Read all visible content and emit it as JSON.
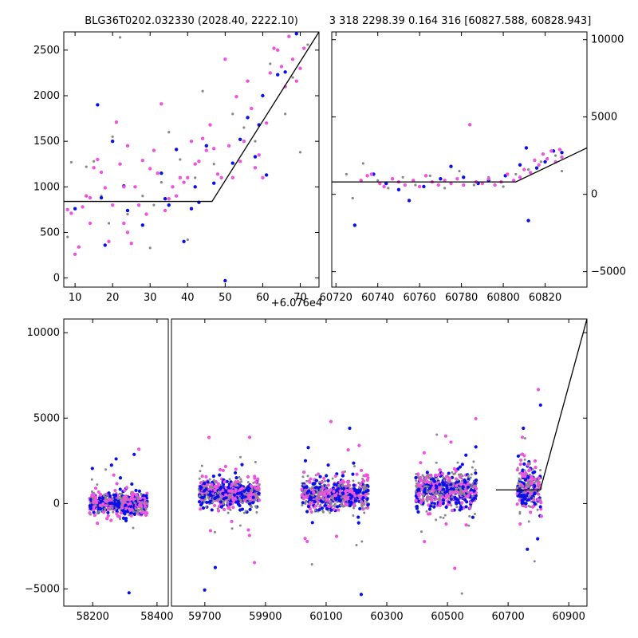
{
  "chart_data": [
    {
      "id": "top-left",
      "type": "scatter",
      "title": "BLG36T0202.032330 (2028.40, 2222.10)",
      "offset_label": "+6.076e4",
      "xlim": [
        7,
        75
      ],
      "ylim": [
        -100,
        2700
      ],
      "xticks": [
        10,
        20,
        30,
        40,
        50,
        60,
        70
      ],
      "yticks": [
        0,
        500,
        1000,
        1500,
        2000,
        2500
      ],
      "model_line": {
        "x": [
          7,
          46.5,
          75
        ],
        "y": [
          840,
          840,
          2700
        ]
      },
      "series": [
        {
          "color": "#888888",
          "points": [
            [
              8,
              450
            ],
            [
              9,
              1270
            ],
            [
              13,
              1220
            ],
            [
              15,
              1280
            ],
            [
              17,
              900
            ],
            [
              19,
              600
            ],
            [
              20,
              1550
            ],
            [
              22,
              2640
            ],
            [
              24,
              700
            ],
            [
              28,
              900
            ],
            [
              30,
              330
            ],
            [
              31,
              800
            ],
            [
              33,
              1050
            ],
            [
              35,
              1600
            ],
            [
              38,
              1300
            ],
            [
              40,
              420
            ],
            [
              42,
              1100
            ],
            [
              44,
              2050
            ],
            [
              47,
              1250
            ],
            [
              52,
              1800
            ],
            [
              55,
              1650
            ],
            [
              58,
              1500
            ],
            [
              62,
              2350
            ],
            [
              66,
              1800
            ],
            [
              68,
              2200
            ],
            [
              70,
              1380
            ],
            [
              72,
              2560
            ]
          ]
        },
        {
          "color": "#0a10e8",
          "points": [
            [
              10,
              760
            ],
            [
              16,
              1900
            ],
            [
              17,
              880
            ],
            [
              18,
              360
            ],
            [
              20,
              1500
            ],
            [
              23,
              1010
            ],
            [
              24,
              740
            ],
            [
              28,
              580
            ],
            [
              33,
              1150
            ],
            [
              34,
              870
            ],
            [
              35,
              800
            ],
            [
              37,
              1410
            ],
            [
              39,
              400
            ],
            [
              41,
              760
            ],
            [
              42,
              1000
            ],
            [
              43,
              830
            ],
            [
              45,
              1450
            ],
            [
              47,
              1040
            ],
            [
              50,
              -30
            ],
            [
              52,
              1260
            ],
            [
              54,
              1520
            ],
            [
              56,
              1760
            ],
            [
              58,
              1330
            ],
            [
              59,
              1680
            ],
            [
              60,
              2000
            ],
            [
              61,
              1130
            ],
            [
              62,
              2720
            ],
            [
              64,
              2230
            ],
            [
              66,
              2260
            ],
            [
              69,
              2680
            ]
          ]
        },
        {
          "color": "#ee55dd",
          "points": [
            [
              8,
              750
            ],
            [
              9,
              710
            ],
            [
              10,
              260
            ],
            [
              11,
              340
            ],
            [
              12,
              780
            ],
            [
              13,
              900
            ],
            [
              14,
              600
            ],
            [
              14,
              880
            ],
            [
              15,
              1210
            ],
            [
              16,
              1300
            ],
            [
              17,
              1160
            ],
            [
              18,
              990
            ],
            [
              19,
              400
            ],
            [
              20,
              800
            ],
            [
              21,
              1710
            ],
            [
              22,
              1250
            ],
            [
              23,
              1000
            ],
            [
              23,
              600
            ],
            [
              24,
              1450
            ],
            [
              24,
              500
            ],
            [
              25,
              380
            ],
            [
              26,
              1000
            ],
            [
              27,
              800
            ],
            [
              28,
              1290
            ],
            [
              29,
              700
            ],
            [
              30,
              1200
            ],
            [
              31,
              1400
            ],
            [
              32,
              1150
            ],
            [
              33,
              1910
            ],
            [
              34,
              740
            ],
            [
              35,
              870
            ],
            [
              36,
              1000
            ],
            [
              37,
              900
            ],
            [
              38,
              1100
            ],
            [
              39,
              1050
            ],
            [
              40,
              1100
            ],
            [
              41,
              1500
            ],
            [
              42,
              1250
            ],
            [
              43,
              1280
            ],
            [
              44,
              1530
            ],
            [
              45,
              1400
            ],
            [
              46,
              1680
            ],
            [
              47,
              1420
            ],
            [
              48,
              1140
            ],
            [
              49,
              1100
            ],
            [
              50,
              2400
            ],
            [
              51,
              1450
            ],
            [
              52,
              1100
            ],
            [
              53,
              1990
            ],
            [
              54,
              1280
            ],
            [
              55,
              1500
            ],
            [
              56,
              2160
            ],
            [
              57,
              1860
            ],
            [
              58,
              1210
            ],
            [
              59,
              1350
            ],
            [
              60,
              1100
            ],
            [
              61,
              1700
            ],
            [
              62,
              2250
            ],
            [
              63,
              2520
            ],
            [
              64,
              2500
            ],
            [
              65,
              2320
            ],
            [
              66,
              2100
            ],
            [
              67,
              2650
            ],
            [
              68,
              2400
            ],
            [
              69,
              2160
            ],
            [
              70,
              2300
            ],
            [
              71,
              2520
            ]
          ]
        }
      ]
    },
    {
      "id": "top-right",
      "type": "scatter",
      "title": "3 318 2298.39 0.164 316 [60827.588, 60828.943]",
      "xlim": [
        60718,
        60840
      ],
      "ylim": [
        -6000,
        10500
      ],
      "xticks": [
        60720,
        60740,
        60760,
        60780,
        60800,
        60820
      ],
      "yticks": [
        -5000,
        0,
        5000,
        10000
      ],
      "model_line": {
        "x": [
          60718,
          60806,
          60840
        ],
        "y": [
          800,
          800,
          3000
        ]
      },
      "series": [
        {
          "color": "#888888",
          "points": [
            [
              60725,
              1300
            ],
            [
              60728,
              -250
            ],
            [
              60733,
              2000
            ],
            [
              60740,
              900
            ],
            [
              60745,
              400
            ],
            [
              60752,
              1100
            ],
            [
              60758,
              600
            ],
            [
              60765,
              1200
            ],
            [
              60772,
              400
            ],
            [
              60779,
              1500
            ],
            [
              60786,
              600
            ],
            [
              60793,
              1100
            ],
            [
              60800,
              500
            ],
            [
              60806,
              1300
            ],
            [
              60812,
              1600
            ],
            [
              60818,
              2100
            ],
            [
              60825,
              2500
            ],
            [
              60828,
              1500
            ]
          ]
        },
        {
          "color": "#0a10e8",
          "points": [
            [
              60729,
              -2000
            ],
            [
              60738,
              1300
            ],
            [
              60744,
              700
            ],
            [
              60750,
              300
            ],
            [
              60755,
              -400
            ],
            [
              60762,
              500
            ],
            [
              60770,
              1000
            ],
            [
              60775,
              1800
            ],
            [
              60781,
              1100
            ],
            [
              60788,
              700
            ],
            [
              60793,
              900
            ],
            [
              60801,
              1200
            ],
            [
              60808,
              1900
            ],
            [
              60811,
              3000
            ],
            [
              60812,
              -1700
            ],
            [
              60816,
              1700
            ],
            [
              60820,
              2100
            ],
            [
              60824,
              2800
            ],
            [
              60828,
              2700
            ]
          ]
        },
        {
          "color": "#ee55dd",
          "points": [
            [
              60732,
              900
            ],
            [
              60735,
              1200
            ],
            [
              60737,
              1300
            ],
            [
              60741,
              700
            ],
            [
              60743,
              500
            ],
            [
              60747,
              1000
            ],
            [
              60750,
              800
            ],
            [
              60753,
              600
            ],
            [
              60757,
              900
            ],
            [
              60760,
              500
            ],
            [
              60763,
              1200
            ],
            [
              60766,
              800
            ],
            [
              60769,
              600
            ],
            [
              60772,
              900
            ],
            [
              60775,
              700
            ],
            [
              60778,
              1000
            ],
            [
              60781,
              600
            ],
            [
              60784,
              4500
            ],
            [
              60787,
              800
            ],
            [
              60790,
              700
            ],
            [
              60793,
              1000
            ],
            [
              60796,
              600
            ],
            [
              60799,
              800
            ],
            [
              60802,
              1300
            ],
            [
              60805,
              900
            ],
            [
              60808,
              1100
            ],
            [
              60810,
              1600
            ],
            [
              60813,
              1400
            ],
            [
              60815,
              2200
            ],
            [
              60817,
              1900
            ],
            [
              60819,
              2600
            ],
            [
              60821,
              2300
            ],
            [
              60823,
              2800
            ],
            [
              60825,
              2100
            ],
            [
              60827,
              2900
            ],
            [
              60828,
              2400
            ]
          ]
        }
      ]
    },
    {
      "id": "bottom",
      "type": "scatter",
      "ylim": [
        -6000,
        10800
      ],
      "yticks": [
        -5000,
        0,
        5000,
        10000
      ],
      "segments": [
        {
          "xlim": [
            58110,
            58435
          ],
          "xticks": [
            58200,
            58400
          ],
          "x_center": 58280,
          "x_spread": 90,
          "y_center": 0,
          "y_spread": 300
        },
        {
          "xlim": [
            59590,
            60960
          ],
          "xticks": [
            59700,
            59900,
            60100,
            60300,
            60500,
            60700,
            60900
          ]
        }
      ],
      "clusters": [
        {
          "x_center": 59780,
          "x_spread": 100,
          "y_center": 600,
          "y_spread": 400
        },
        {
          "x_center": 60130,
          "x_spread": 110,
          "y_center": 500,
          "y_spread": 450
        },
        {
          "x_center": 60495,
          "x_spread": 100,
          "y_center": 800,
          "y_spread": 500
        },
        {
          "x_center": 60770,
          "x_spread": 40,
          "y_center": 900,
          "y_spread": 700
        }
      ],
      "model_line": {
        "x": [
          60660,
          60806,
          60960
        ],
        "y": [
          800,
          800,
          10800
        ]
      },
      "series_colors": [
        "#888888",
        "#0a10e8",
        "#ee55dd"
      ]
    }
  ]
}
